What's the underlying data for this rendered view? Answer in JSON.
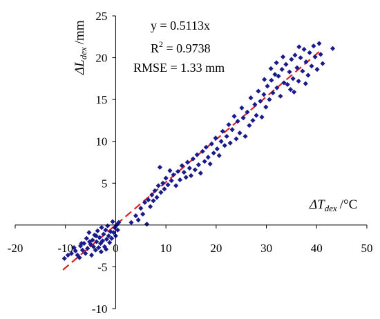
{
  "chart_data": {
    "type": "scatter",
    "title": "",
    "xlabel": {
      "delta": "ΔT",
      "subscript": "dex",
      "unit": "/°C"
    },
    "ylabel": {
      "delta": "ΔL",
      "subscript": "dex",
      "unit": "/mm"
    },
    "xlim": [
      -20,
      50
    ],
    "ylim": [
      -10,
      25
    ],
    "xticks": [
      -20,
      -10,
      0,
      10,
      20,
      30,
      40,
      50
    ],
    "yticks": [
      -10,
      -5,
      0,
      5,
      10,
      15,
      20,
      25
    ],
    "grid": false,
    "legend": "none",
    "marker_color": "#1a1a8c",
    "fit_color": "#e02020",
    "annotations": [
      {
        "text": "y = 0.5113x"
      },
      {
        "text_main": "R",
        "text_sup": "2",
        "text_rest": " = 0.9738"
      },
      {
        "text": "RMSE = 1.33 mm"
      }
    ],
    "fit_line": {
      "slope": 0.5113,
      "x_range": [
        -10.5,
        41
      ]
    },
    "series": [
      {
        "points": [
          [
            -10.2,
            -4.0
          ],
          [
            -9.5,
            -3.6
          ],
          [
            -8.8,
            -3.4
          ],
          [
            -8.3,
            -2.7
          ],
          [
            -8.0,
            -3.1
          ],
          [
            -7.6,
            -3.6
          ],
          [
            -7.2,
            -3.9
          ],
          [
            -7.0,
            -2.5
          ],
          [
            -6.6,
            -3.0
          ],
          [
            -6.3,
            -2.2
          ],
          [
            -6.0,
            -3.4
          ],
          [
            -5.8,
            -1.6
          ],
          [
            -5.6,
            -2.8
          ],
          [
            -5.3,
            -0.9
          ],
          [
            -5.0,
            -2.3
          ],
          [
            -4.8,
            -3.6
          ],
          [
            -4.6,
            -1.8
          ],
          [
            -4.4,
            -2.6
          ],
          [
            -4.2,
            -1.2
          ],
          [
            -4.0,
            -3.0
          ],
          [
            -3.8,
            -2.0
          ],
          [
            -3.6,
            -0.7
          ],
          [
            -3.4,
            -2.7
          ],
          [
            -3.2,
            -1.5
          ],
          [
            -3.0,
            -2.2
          ],
          [
            -2.8,
            -0.3
          ],
          [
            -2.6,
            -1.9
          ],
          [
            -2.4,
            -1.1
          ],
          [
            -2.2,
            -2.6
          ],
          [
            -2.0,
            -0.6
          ],
          [
            -1.8,
            -1.7
          ],
          [
            -1.6,
            -0.1
          ],
          [
            -1.4,
            -1.3
          ],
          [
            -1.2,
            -2.1
          ],
          [
            -1.0,
            -0.8
          ],
          [
            -0.8,
            -1.6
          ],
          [
            -0.6,
            0.4
          ],
          [
            -0.4,
            -0.9
          ],
          [
            -0.2,
            -0.3
          ],
          [
            0.0,
            -1.3
          ],
          [
            0.2,
            0.0
          ],
          [
            0.4,
            -0.6
          ],
          [
            0.6,
            0.3
          ],
          [
            -2.9,
            -3.2
          ],
          [
            -3.9,
            -1.3
          ],
          [
            -5.2,
            -2.0
          ],
          [
            -6.8,
            -2.2
          ],
          [
            -1.9,
            -2.9
          ],
          [
            3.1,
            0.3
          ],
          [
            4.0,
            1.1
          ],
          [
            4.5,
            0.6
          ],
          [
            5.0,
            2.0
          ],
          [
            5.4,
            1.3
          ],
          [
            5.8,
            2.7
          ],
          [
            6.2,
            0.1
          ],
          [
            6.5,
            3.0
          ],
          [
            6.9,
            2.2
          ],
          [
            7.2,
            3.6
          ],
          [
            7.5,
            2.9
          ],
          [
            7.8,
            4.1
          ],
          [
            8.2,
            3.3
          ],
          [
            8.5,
            4.7
          ],
          [
            8.8,
            6.9
          ],
          [
            9.0,
            3.9
          ],
          [
            9.4,
            5.0
          ],
          [
            9.7,
            4.3
          ],
          [
            10.0,
            5.6
          ],
          [
            10.4,
            4.8
          ],
          [
            10.8,
            6.5
          ],
          [
            11.1,
            5.3
          ],
          [
            11.5,
            6.0
          ],
          [
            12.0,
            4.7
          ],
          [
            12.4,
            6.4
          ],
          [
            12.8,
            5.4
          ],
          [
            13.2,
            7.1
          ],
          [
            13.6,
            6.3
          ],
          [
            14.0,
            5.7
          ],
          [
            14.3,
            7.5
          ],
          [
            14.7,
            6.8
          ],
          [
            15.0,
            5.9
          ],
          [
            15.4,
            7.9
          ],
          [
            15.8,
            6.6
          ],
          [
            16.2,
            8.4
          ],
          [
            16.5,
            7.2
          ],
          [
            16.9,
            6.2
          ],
          [
            17.3,
            8.8
          ],
          [
            17.7,
            7.6
          ],
          [
            18.0,
            9.3
          ],
          [
            18.4,
            8.1
          ],
          [
            18.8,
            7.3
          ],
          [
            19.1,
            9.7
          ],
          [
            19.5,
            8.6
          ],
          [
            19.9,
            10.4
          ],
          [
            20.2,
            9.1
          ],
          [
            20.6,
            8.3
          ],
          [
            21.0,
            10.0
          ],
          [
            21.3,
            11.2
          ],
          [
            21.7,
            9.5
          ],
          [
            22.1,
            10.6
          ],
          [
            22.5,
            12.0
          ],
          [
            22.8,
            9.8
          ],
          [
            23.2,
            11.4
          ],
          [
            23.6,
            13.0
          ],
          [
            24.0,
            10.3
          ],
          [
            24.3,
            12.4
          ],
          [
            24.7,
            11.0
          ],
          [
            25.1,
            14.0
          ],
          [
            25.4,
            12.8
          ],
          [
            25.8,
            10.6
          ],
          [
            26.2,
            13.5
          ],
          [
            26.6,
            11.9
          ],
          [
            26.9,
            15.2
          ],
          [
            27.3,
            12.5
          ],
          [
            27.7,
            14.4
          ],
          [
            28.0,
            13.1
          ],
          [
            28.4,
            16.0
          ],
          [
            28.8,
            14.8
          ],
          [
            29.1,
            12.9
          ],
          [
            29.5,
            15.6
          ],
          [
            29.9,
            14.1
          ],
          [
            30.2,
            16.6
          ],
          [
            30.6,
            15.0
          ],
          [
            31.0,
            17.3
          ],
          [
            31.3,
            15.8
          ],
          [
            31.7,
            18.0
          ],
          [
            32.1,
            16.4
          ],
          [
            32.4,
            17.8
          ],
          [
            32.8,
            15.4
          ],
          [
            33.1,
            18.6
          ],
          [
            33.5,
            17.0
          ],
          [
            33.9,
            19.2
          ],
          [
            34.2,
            16.8
          ],
          [
            34.6,
            18.3
          ],
          [
            35.0,
            19.8
          ],
          [
            35.3,
            17.5
          ],
          [
            35.7,
            20.3
          ],
          [
            36.1,
            18.8
          ],
          [
            36.4,
            17.2
          ],
          [
            36.8,
            20.0
          ],
          [
            37.2,
            18.4
          ],
          [
            37.5,
            21.0
          ],
          [
            37.9,
            19.5
          ],
          [
            38.3,
            17.9
          ],
          [
            38.6,
            20.6
          ],
          [
            39.0,
            19.0
          ],
          [
            39.4,
            21.4
          ],
          [
            39.7,
            20.1
          ],
          [
            40.1,
            18.6
          ],
          [
            40.5,
            21.7
          ],
          [
            40.8,
            20.4
          ],
          [
            41.2,
            19.3
          ],
          [
            43.2,
            21.1
          ],
          [
            32.0,
            19.4
          ],
          [
            33.3,
            20.1
          ],
          [
            34.8,
            16.2
          ],
          [
            36.5,
            21.3
          ],
          [
            37.8,
            16.9
          ],
          [
            30.9,
            18.7
          ],
          [
            29.6,
            17.4
          ],
          [
            35.5,
            15.9
          ]
        ]
      }
    ]
  }
}
